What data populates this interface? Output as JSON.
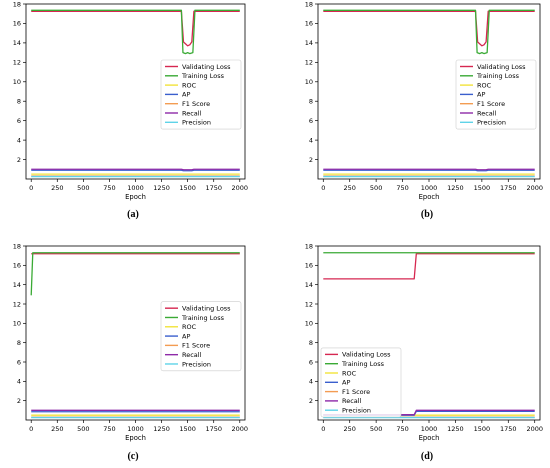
{
  "panel_captions": [
    "(a)",
    "(b)",
    "(c)",
    "(d)"
  ],
  "chart_data": [
    {
      "type": "line",
      "panel": "a",
      "xlabel": "Epoch",
      "ylabel": "",
      "xlim": [
        -50,
        2050
      ],
      "ylim": [
        0.0,
        18.0
      ],
      "xticks": [
        0,
        250,
        500,
        750,
        1000,
        1250,
        1500,
        1750,
        2000
      ],
      "yticks": [
        2,
        4,
        6,
        8,
        10,
        12,
        14,
        16,
        18
      ],
      "legend": "center-right",
      "grid": false,
      "series": [
        {
          "name": "Validating Loss",
          "color": "#d62750",
          "points": [
            [
              0,
              17.25
            ],
            [
              1440,
              17.25
            ],
            [
              1460,
              14.1
            ],
            [
              1480,
              13.9
            ],
            [
              1500,
              13.7
            ],
            [
              1520,
              13.8
            ],
            [
              1540,
              14.1
            ],
            [
              1560,
              17.25
            ],
            [
              2000,
              17.25
            ]
          ]
        },
        {
          "name": "Training Loss",
          "color": "#3aaa35",
          "points": [
            [
              0,
              17.35
            ],
            [
              1440,
              17.35
            ],
            [
              1455,
              13.0
            ],
            [
              1480,
              12.9
            ],
            [
              1500,
              13.0
            ],
            [
              1520,
              12.9
            ],
            [
              1550,
              13.0
            ],
            [
              1570,
              17.35
            ],
            [
              2000,
              17.35
            ]
          ]
        },
        {
          "name": "ROC",
          "color": "#f2e33a",
          "points": [
            [
              0,
              0.5
            ],
            [
              2000,
              0.5
            ]
          ]
        },
        {
          "name": "AP",
          "color": "#3a5fcd",
          "points": [
            [
              0,
              0.9
            ],
            [
              1440,
              0.9
            ],
            [
              1460,
              0.85
            ],
            [
              1540,
              0.85
            ],
            [
              1560,
              0.9
            ],
            [
              2000,
              0.9
            ]
          ]
        },
        {
          "name": "F1 Score",
          "color": "#f39c52",
          "points": [
            [
              0,
              0.3
            ],
            [
              2000,
              0.3
            ]
          ]
        },
        {
          "name": "Recall",
          "color": "#8e2aa8",
          "points": [
            [
              0,
              1.0
            ],
            [
              1440,
              1.0
            ],
            [
              1460,
              0.95
            ],
            [
              1540,
              0.95
            ],
            [
              1560,
              1.0
            ],
            [
              2000,
              1.0
            ]
          ]
        },
        {
          "name": "Precision",
          "color": "#5fd3e8",
          "points": [
            [
              0,
              0.25
            ],
            [
              2000,
              0.25
            ]
          ]
        }
      ]
    },
    {
      "type": "line",
      "panel": "b",
      "xlabel": "Epoch",
      "ylabel": "",
      "xlim": [
        -50,
        2050
      ],
      "ylim": [
        0.0,
        18.0
      ],
      "xticks": [
        0,
        250,
        500,
        750,
        1000,
        1250,
        1500,
        1750,
        2000
      ],
      "yticks": [
        2,
        4,
        6,
        8,
        10,
        12,
        14,
        16,
        18
      ],
      "legend": "center-right",
      "grid": false,
      "series": [
        {
          "name": "Validating Loss",
          "color": "#d62750",
          "points": [
            [
              0,
              17.25
            ],
            [
              1440,
              17.25
            ],
            [
              1460,
              14.1
            ],
            [
              1480,
              13.9
            ],
            [
              1500,
              13.7
            ],
            [
              1520,
              13.8
            ],
            [
              1540,
              14.1
            ],
            [
              1560,
              17.25
            ],
            [
              2000,
              17.25
            ]
          ]
        },
        {
          "name": "Training Loss",
          "color": "#3aaa35",
          "points": [
            [
              0,
              17.35
            ],
            [
              1440,
              17.35
            ],
            [
              1455,
              13.0
            ],
            [
              1480,
              12.9
            ],
            [
              1500,
              13.0
            ],
            [
              1520,
              12.9
            ],
            [
              1550,
              13.0
            ],
            [
              1570,
              17.35
            ],
            [
              2000,
              17.35
            ]
          ]
        },
        {
          "name": "ROC",
          "color": "#f2e33a",
          "points": [
            [
              0,
              0.5
            ],
            [
              2000,
              0.5
            ]
          ]
        },
        {
          "name": "AP",
          "color": "#3a5fcd",
          "points": [
            [
              0,
              0.9
            ],
            [
              1440,
              0.9
            ],
            [
              1460,
              0.85
            ],
            [
              1540,
              0.85
            ],
            [
              1560,
              0.9
            ],
            [
              2000,
              0.9
            ]
          ]
        },
        {
          "name": "F1 Score",
          "color": "#f39c52",
          "points": [
            [
              0,
              0.3
            ],
            [
              2000,
              0.3
            ]
          ]
        },
        {
          "name": "Recall",
          "color": "#8e2aa8",
          "points": [
            [
              0,
              1.0
            ],
            [
              1440,
              1.0
            ],
            [
              1460,
              0.95
            ],
            [
              1540,
              0.95
            ],
            [
              1560,
              1.0
            ],
            [
              2000,
              1.0
            ]
          ]
        },
        {
          "name": "Precision",
          "color": "#5fd3e8",
          "points": [
            [
              0,
              0.25
            ],
            [
              2000,
              0.25
            ]
          ]
        }
      ]
    },
    {
      "type": "line",
      "panel": "c",
      "xlabel": "Epoch",
      "ylabel": "",
      "xlim": [
        -50,
        2050
      ],
      "ylim": [
        0.0,
        18.0
      ],
      "xticks": [
        0,
        250,
        500,
        750,
        1000,
        1250,
        1500,
        1750,
        2000
      ],
      "yticks": [
        2,
        4,
        6,
        8,
        10,
        12,
        14,
        16,
        18
      ],
      "legend": "center-right",
      "grid": false,
      "series": [
        {
          "name": "Validating Loss",
          "color": "#d62750",
          "points": [
            [
              0,
              17.2
            ],
            [
              2000,
              17.2
            ]
          ]
        },
        {
          "name": "Training Loss",
          "color": "#3aaa35",
          "points": [
            [
              0,
              12.9
            ],
            [
              15,
              17.3
            ],
            [
              2000,
              17.3
            ]
          ]
        },
        {
          "name": "ROC",
          "color": "#f2e33a",
          "points": [
            [
              0,
              0.5
            ],
            [
              2000,
              0.5
            ]
          ]
        },
        {
          "name": "AP",
          "color": "#3a5fcd",
          "points": [
            [
              0,
              0.85
            ],
            [
              2000,
              0.85
            ]
          ]
        },
        {
          "name": "F1 Score",
          "color": "#f39c52",
          "points": [
            [
              0,
              0.3
            ],
            [
              2000,
              0.3
            ]
          ]
        },
        {
          "name": "Recall",
          "color": "#8e2aa8",
          "points": [
            [
              0,
              1.0
            ],
            [
              2000,
              1.0
            ]
          ]
        },
        {
          "name": "Precision",
          "color": "#5fd3e8",
          "points": [
            [
              0,
              0.25
            ],
            [
              2000,
              0.25
            ]
          ]
        }
      ]
    },
    {
      "type": "line",
      "panel": "d",
      "xlabel": "Epoch",
      "ylabel": "",
      "xlim": [
        -50,
        2050
      ],
      "ylim": [
        0.0,
        18.0
      ],
      "xticks": [
        0,
        250,
        500,
        750,
        1000,
        1250,
        1500,
        1750,
        2000
      ],
      "yticks": [
        2,
        4,
        6,
        8,
        10,
        12,
        14,
        16,
        18
      ],
      "legend": "lower-left",
      "grid": false,
      "series": [
        {
          "name": "Validating Loss",
          "color": "#d62750",
          "points": [
            [
              0,
              14.6
            ],
            [
              860,
              14.6
            ],
            [
              880,
              17.2
            ],
            [
              2000,
              17.2
            ]
          ]
        },
        {
          "name": "Training Loss",
          "color": "#3aaa35",
          "points": [
            [
              0,
              17.3
            ],
            [
              2000,
              17.3
            ]
          ]
        },
        {
          "name": "ROC",
          "color": "#f2e33a",
          "points": [
            [
              0,
              0.5
            ],
            [
              2000,
              0.5
            ]
          ]
        },
        {
          "name": "AP",
          "color": "#3a5fcd",
          "points": [
            [
              0,
              0.5
            ],
            [
              860,
              0.5
            ],
            [
              880,
              0.9
            ],
            [
              2000,
              0.9
            ]
          ]
        },
        {
          "name": "F1 Score",
          "color": "#f39c52",
          "points": [
            [
              0,
              0.3
            ],
            [
              2000,
              0.3
            ]
          ]
        },
        {
          "name": "Recall",
          "color": "#8e2aa8",
          "points": [
            [
              0,
              0.55
            ],
            [
              860,
              0.55
            ],
            [
              880,
              1.0
            ],
            [
              2000,
              1.0
            ]
          ]
        },
        {
          "name": "Precision",
          "color": "#5fd3e8",
          "points": [
            [
              0,
              0.25
            ],
            [
              2000,
              0.25
            ]
          ]
        }
      ]
    }
  ]
}
